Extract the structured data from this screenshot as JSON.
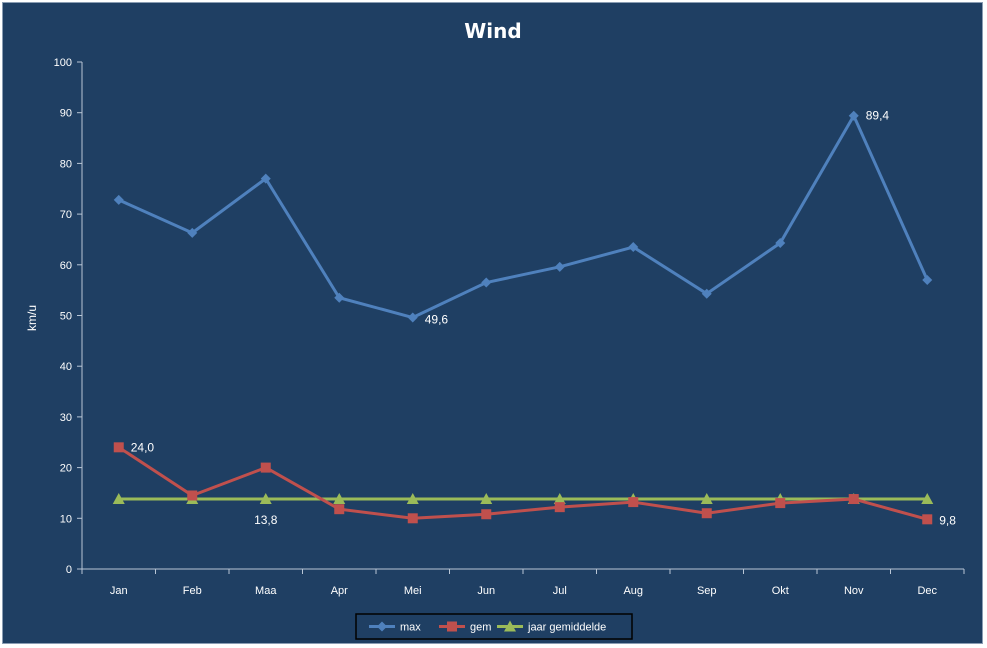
{
  "chart_data": {
    "type": "line",
    "title": "Wind",
    "ylabel": "km/u",
    "xlabel": "",
    "categories": [
      "Jan",
      "Feb",
      "Maa",
      "Apr",
      "Mei",
      "Jun",
      "Jul",
      "Aug",
      "Sep",
      "Okt",
      "Nov",
      "Dec"
    ],
    "ylim": [
      0,
      100
    ],
    "yticks": [
      0,
      10,
      20,
      30,
      40,
      50,
      60,
      70,
      80,
      90,
      100
    ],
    "grid": false,
    "legend_position": "bottom",
    "series": [
      {
        "name": "max",
        "color": "#4f81bd",
        "marker": "diamond",
        "values": [
          72.8,
          66.3,
          77.0,
          53.5,
          49.6,
          56.5,
          59.6,
          63.5,
          54.3,
          64.3,
          89.4,
          57.0
        ]
      },
      {
        "name": "gem",
        "color": "#c0504d",
        "marker": "square",
        "values": [
          24.0,
          14.5,
          20.0,
          11.8,
          10.0,
          10.8,
          12.2,
          13.2,
          11.0,
          13.0,
          13.8,
          9.8
        ]
      },
      {
        "name": "jaar gemiddelde",
        "color": "#9bbb59",
        "marker": "triangle",
        "values": [
          13.8,
          13.8,
          13.8,
          13.8,
          13.8,
          13.8,
          13.8,
          13.8,
          13.8,
          13.8,
          13.8,
          13.8
        ]
      }
    ],
    "data_labels": [
      {
        "series": "max",
        "index": 4,
        "text": "49,6"
      },
      {
        "series": "max",
        "index": 10,
        "text": "89,4"
      },
      {
        "series": "gem",
        "index": 0,
        "text": "24,0"
      },
      {
        "series": "gem",
        "index": 11,
        "text": "9,8"
      },
      {
        "series": "jaar gemiddelde",
        "index": 2,
        "text": "13,8"
      }
    ],
    "background": "#1f3f63"
  }
}
